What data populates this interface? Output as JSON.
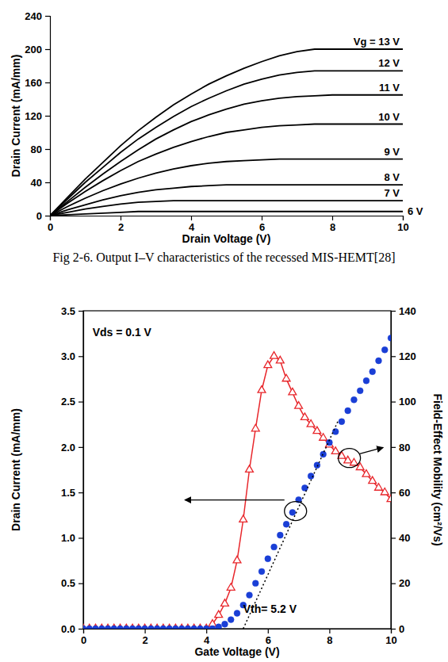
{
  "chart_data": [
    {
      "type": "line",
      "caption": "Fig 2-6. Output I–V characteristics of the recessed MIS-HEMT[28]",
      "x_label": "Drain Voltage (V)",
      "y_label": "Drain Current (mA/mm)",
      "xlim": [
        0,
        10
      ],
      "ylim": [
        0,
        240
      ],
      "xticks": [
        0,
        2,
        4,
        6,
        8,
        10
      ],
      "yticks": [
        0,
        40,
        80,
        120,
        160,
        200,
        240
      ],
      "grid": false,
      "x": [
        0,
        0.5,
        1,
        1.5,
        2,
        2.5,
        3,
        3.5,
        4,
        4.5,
        5,
        5.5,
        6,
        6.5,
        7,
        7.5,
        8,
        8.5,
        9,
        9.5,
        10
      ],
      "series": [
        {
          "name": "Vg = 13 V",
          "color": "#000000",
          "values": [
            0,
            22,
            44,
            64,
            84,
            102,
            118,
            133,
            146,
            158,
            168,
            177,
            185,
            192,
            197,
            200,
            200,
            200,
            200,
            200,
            200
          ]
        },
        {
          "name": "12 V",
          "color": "#000000",
          "values": [
            0,
            20,
            40,
            58,
            76,
            92,
            106,
            119,
            131,
            141,
            150,
            158,
            164,
            169,
            172,
            174,
            174,
            174,
            174,
            174,
            174
          ]
        },
        {
          "name": "11 V",
          "color": "#000000",
          "values": [
            0,
            17,
            34,
            50,
            65,
            79,
            92,
            103,
            113,
            121,
            128,
            134,
            138,
            141,
            143,
            144,
            145,
            145,
            145,
            145,
            145
          ]
        },
        {
          "name": "10 V",
          "color": "#000000",
          "values": [
            0,
            15,
            29,
            42,
            54,
            65,
            74,
            82,
            89,
            95,
            100,
            103,
            106,
            108,
            109,
            110,
            110,
            110,
            110,
            110,
            110
          ]
        },
        {
          "name": "9 V",
          "color": "#000000",
          "values": [
            0,
            11,
            21,
            30,
            38,
            45,
            51,
            56,
            60,
            63,
            65,
            66,
            67,
            68,
            68,
            68,
            68,
            68,
            68,
            68,
            68
          ]
        },
        {
          "name": "8 V",
          "color": "#000000",
          "values": [
            0,
            7,
            13,
            19,
            24,
            28,
            31,
            33,
            35,
            36,
            37,
            37,
            37,
            37,
            37,
            37,
            37,
            37,
            37,
            37,
            37
          ]
        },
        {
          "name": "7 V",
          "color": "#000000",
          "values": [
            0,
            4,
            8,
            11,
            14,
            16,
            17,
            18,
            18,
            18,
            18,
            18,
            18,
            18,
            18,
            18,
            18,
            18,
            18,
            18,
            18
          ]
        },
        {
          "name": "6 V",
          "color": "#000000",
          "values": [
            0,
            1,
            2,
            3,
            4,
            5,
            5,
            5,
            5,
            5,
            5,
            5,
            5,
            5,
            5,
            5,
            5,
            5,
            5,
            5,
            5
          ]
        }
      ]
    },
    {
      "type": "line",
      "x_label": "Gate Voltage (V)",
      "y_label": "Drain Current (mA/mm)",
      "y2_label": "Field-Effect Mobility (cm²/Vs)",
      "annotations": [
        "Vds = 0.1 V",
        "Vth= 5.2 V"
      ],
      "xlim": [
        0,
        10
      ],
      "ylim": [
        0,
        3.5
      ],
      "y2lim": [
        0,
        140
      ],
      "xticks": [
        0,
        2,
        4,
        6,
        8,
        10
      ],
      "yticks": [
        {
          "value": 0,
          "label": "0.0"
        },
        0.5,
        {
          "value": 1,
          "label": "1.0"
        },
        1.5,
        {
          "value": 2,
          "label": "2.0"
        },
        2.5,
        {
          "value": 3,
          "label": "3.0"
        },
        3.5
      ],
      "y2ticks": [
        0,
        20,
        40,
        60,
        80,
        100,
        120,
        140
      ],
      "grid": false,
      "series": [
        {
          "color": "#e8262b",
          "marker": "triangle",
          "line_style": "solid",
          "axis": "y2",
          "x": [
            0,
            0.2,
            0.4,
            0.6,
            0.8,
            1,
            1.2,
            1.4,
            1.6,
            1.8,
            2,
            2.2,
            2.4,
            2.6,
            2.8,
            3,
            3.2,
            3.4,
            3.6,
            3.8,
            4,
            4.2,
            4.4,
            4.6,
            4.8,
            5,
            5.2,
            5.4,
            5.6,
            5.8,
            6,
            6.2,
            6.4,
            6.6,
            6.8,
            7,
            7.2,
            7.4,
            7.6,
            7.8,
            8,
            8.2,
            8.4,
            8.6,
            8.8,
            9,
            9.2,
            9.4,
            9.6,
            9.8,
            10
          ],
          "values": [
            0,
            0,
            0,
            0,
            0,
            0,
            0,
            0,
            0,
            0,
            0,
            0,
            0,
            0,
            0,
            0,
            0,
            0,
            0,
            0,
            0,
            2,
            6,
            11,
            18,
            30,
            48,
            70,
            88,
            105,
            116,
            120,
            118,
            110,
            104,
            98,
            93,
            90,
            87,
            84,
            81,
            78,
            76,
            74,
            73,
            71,
            68,
            65,
            62,
            60,
            57
          ]
        },
        {
          "color": "#1a3fd6",
          "marker": "circle",
          "line_style": "none",
          "x": [
            0,
            0.2,
            0.4,
            0.6,
            0.8,
            1,
            1.2,
            1.4,
            1.6,
            1.8,
            2,
            2.2,
            2.4,
            2.6,
            2.8,
            3,
            3.2,
            3.4,
            3.6,
            3.8,
            4,
            4.2,
            4.4,
            4.6,
            4.8,
            5,
            5.2,
            5.4,
            5.6,
            5.8,
            6,
            6.2,
            6.4,
            6.6,
            6.8,
            7,
            7.2,
            7.4,
            7.6,
            7.8,
            8,
            8.2,
            8.4,
            8.6,
            8.8,
            9,
            9.2,
            9.4,
            9.6,
            9.8,
            10
          ],
          "values": [
            0,
            0,
            0,
            0,
            0,
            0,
            0,
            0,
            0,
            0,
            0,
            0,
            0,
            0,
            0,
            0,
            0,
            0,
            0,
            0,
            0,
            0,
            0.02,
            0.05,
            0.1,
            0.17,
            0.26,
            0.37,
            0.5,
            0.63,
            0.77,
            0.9,
            1.03,
            1.15,
            1.28,
            1.42,
            1.55,
            1.68,
            1.8,
            1.92,
            2.05,
            2.17,
            2.28,
            2.4,
            2.52,
            2.62,
            2.73,
            2.83,
            2.95,
            3.07,
            3.2
          ]
        },
        {
          "color": "#000000",
          "marker": "none",
          "line_style": "dotted",
          "x": [
            5.2,
            8.3
          ],
          "values": [
            0,
            2.3
          ]
        }
      ]
    }
  ]
}
